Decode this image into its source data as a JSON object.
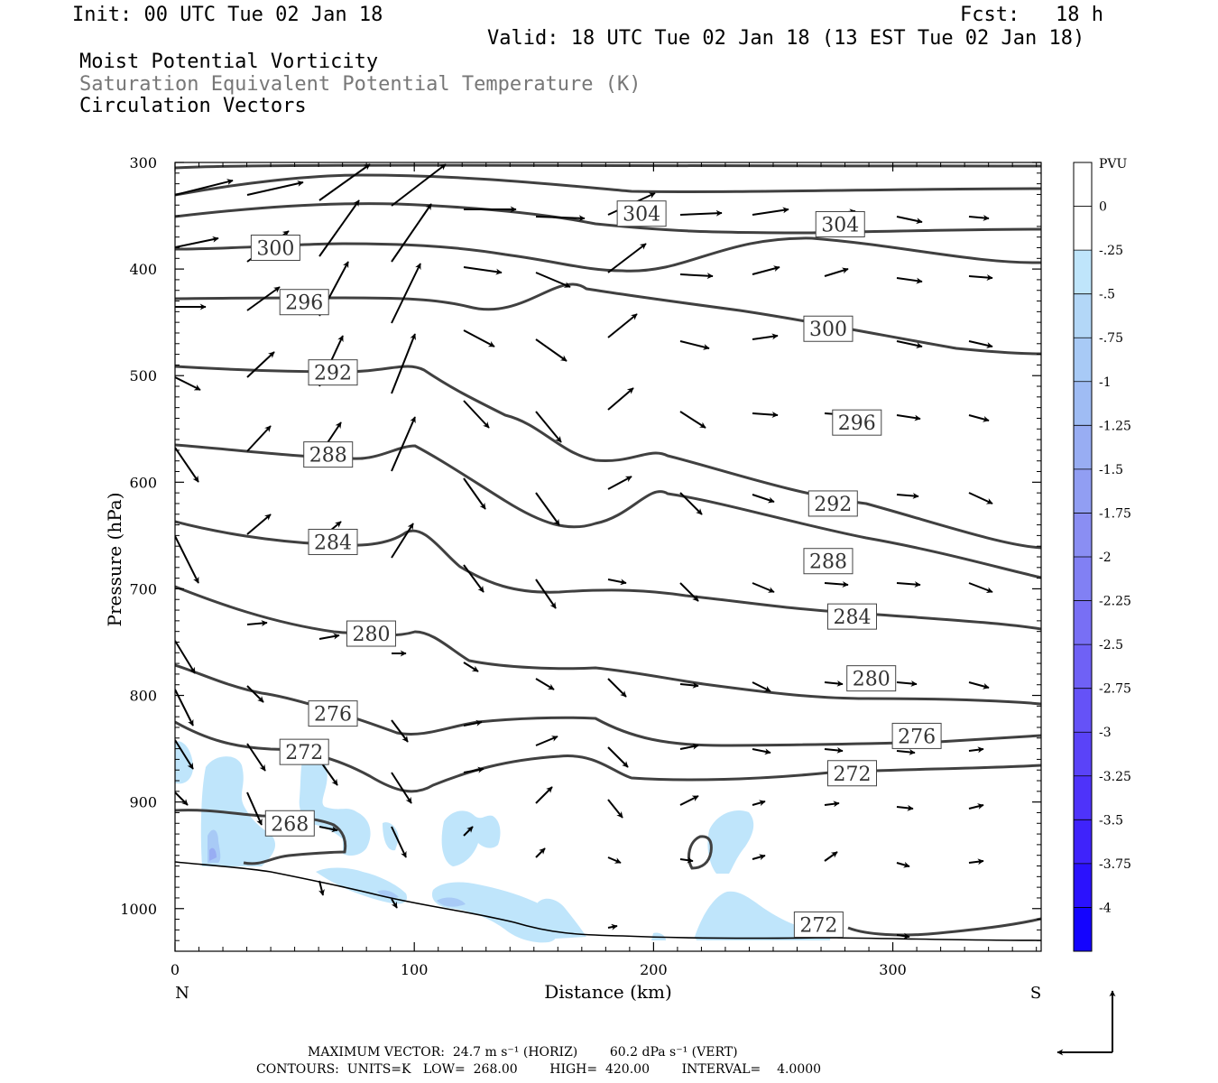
{
  "header": {
    "init": "Init: 00 UTC Tue 02 Jan 18",
    "fcst": "Fcst:   18 h",
    "valid": "Valid: 18 UTC Tue 02 Jan 18 (13 EST Tue 02 Jan 18)",
    "field1": "Moist Potential Vorticity",
    "field2": "Saturation Equivalent Potential Temperature (K)",
    "field3": "Circulation Vectors"
  },
  "footer": {
    "max_vector": "MAXIMUM VECTOR:  24.7 m s⁻¹ (HORIZ)        60.2 dPa s⁻¹ (VERT)",
    "contours": "CONTOURS:  UNITS=K   LOW=  268.00        HIGH=  420.00        INTERVAL=    4.0000"
  },
  "chart_data": {
    "type": "cross-section",
    "xlabel": "Distance (km)",
    "ylabel": "Pressure (hPa)",
    "x_end_labels": {
      "left": "N",
      "right": "S"
    },
    "xlim": [
      0,
      362
    ],
    "ylim": [
      300,
      1040
    ],
    "x_ticks": [
      0,
      100,
      200,
      300
    ],
    "y_ticks": [
      300,
      400,
      500,
      600,
      700,
      800,
      900,
      1000
    ],
    "colorbar": {
      "unit": "PVU",
      "labels": [
        "0",
        "-.25",
        "-.5",
        "-.75",
        "-1",
        "-1.25",
        "-1.5",
        "-1.75",
        "-2",
        "-2.25",
        "-2.5",
        "-2.75",
        "-3",
        "-3.25",
        "-3.5",
        "-3.75",
        "-4"
      ],
      "colors": [
        "#ffffff",
        "#ffffff",
        "#bfe5fb",
        "#b3d7f7",
        "#a8caf6",
        "#9fbcf4",
        "#98adf3",
        "#919ef3",
        "#8a8ef3",
        "#8180f4",
        "#786ff5",
        "#6f61f6",
        "#6552f7",
        "#5a43f8",
        "#4e33fa",
        "#3f23fb",
        "#2b12fd",
        "#1404fe"
      ]
    },
    "contour_labels": [
      {
        "text": "300",
        "x": 42,
        "p": 380
      },
      {
        "text": "304",
        "x": 195,
        "p": 348
      },
      {
        "text": "304",
        "x": 278,
        "p": 358
      },
      {
        "text": "296",
        "x": 54,
        "p": 431
      },
      {
        "text": "300",
        "x": 273,
        "p": 456
      },
      {
        "text": "292",
        "x": 66,
        "p": 497
      },
      {
        "text": "296",
        "x": 285,
        "p": 544
      },
      {
        "text": "288",
        "x": 64,
        "p": 574
      },
      {
        "text": "292",
        "x": 275,
        "p": 620
      },
      {
        "text": "284",
        "x": 66,
        "p": 656
      },
      {
        "text": "288",
        "x": 273,
        "p": 674
      },
      {
        "text": "280",
        "x": 82,
        "p": 742
      },
      {
        "text": "284",
        "x": 283,
        "p": 726
      },
      {
        "text": "280",
        "x": 291,
        "p": 784
      },
      {
        "text": "276",
        "x": 66,
        "p": 817
      },
      {
        "text": "276",
        "x": 310,
        "p": 838
      },
      {
        "text": "272",
        "x": 54,
        "p": 853
      },
      {
        "text": "272",
        "x": 283,
        "p": 873
      },
      {
        "text": "268",
        "x": 48,
        "p": 920
      },
      {
        "text": "272",
        "x": 269,
        "p": 1015
      }
    ]
  }
}
